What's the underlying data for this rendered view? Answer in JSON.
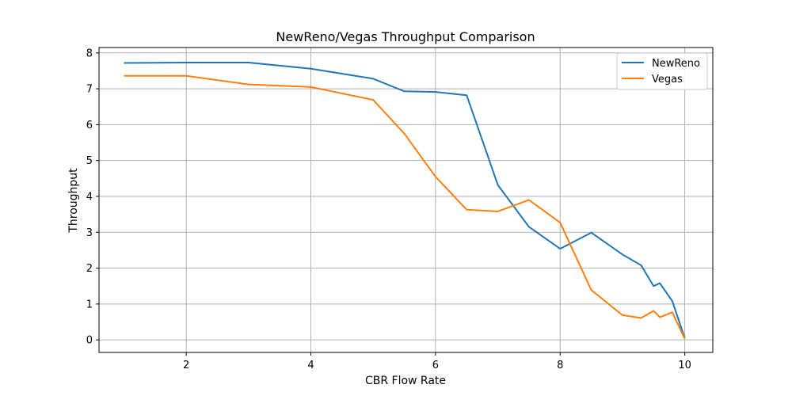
{
  "chart_data": {
    "type": "line",
    "title": "NewReno/Vegas Throughput Comparison",
    "xlabel": "CBR Flow Rate",
    "ylabel": "Throughput",
    "xlim": [
      0.6,
      10.45
    ],
    "ylim": [
      -0.35,
      8.15
    ],
    "xticks": [
      2,
      4,
      6,
      8,
      10
    ],
    "yticks": [
      0,
      1,
      2,
      3,
      4,
      5,
      6,
      7,
      8
    ],
    "grid": true,
    "legend_position": "top-right",
    "series": [
      {
        "name": "NewReno",
        "color": "#1f77b4",
        "x": [
          1,
          2,
          3,
          4,
          5,
          5.5,
          6,
          6.5,
          7,
          7.5,
          8,
          8.5,
          9,
          9.3,
          9.5,
          9.6,
          9.8,
          10
        ],
        "y": [
          7.72,
          7.73,
          7.73,
          7.56,
          7.28,
          6.93,
          6.91,
          6.82,
          4.32,
          3.15,
          2.54,
          2.99,
          2.38,
          2.08,
          1.5,
          1.58,
          1.08,
          0.05
        ]
      },
      {
        "name": "Vegas",
        "color": "#ff7f0e",
        "x": [
          1,
          2,
          3,
          4,
          5,
          5.5,
          6,
          6.5,
          7,
          7.5,
          8,
          8.5,
          9,
          9.3,
          9.5,
          9.6,
          9.8,
          10
        ],
        "y": [
          7.36,
          7.36,
          7.12,
          7.05,
          6.69,
          5.75,
          4.55,
          3.63,
          3.58,
          3.9,
          3.27,
          1.39,
          0.69,
          0.61,
          0.81,
          0.63,
          0.77,
          0.03
        ]
      }
    ]
  }
}
